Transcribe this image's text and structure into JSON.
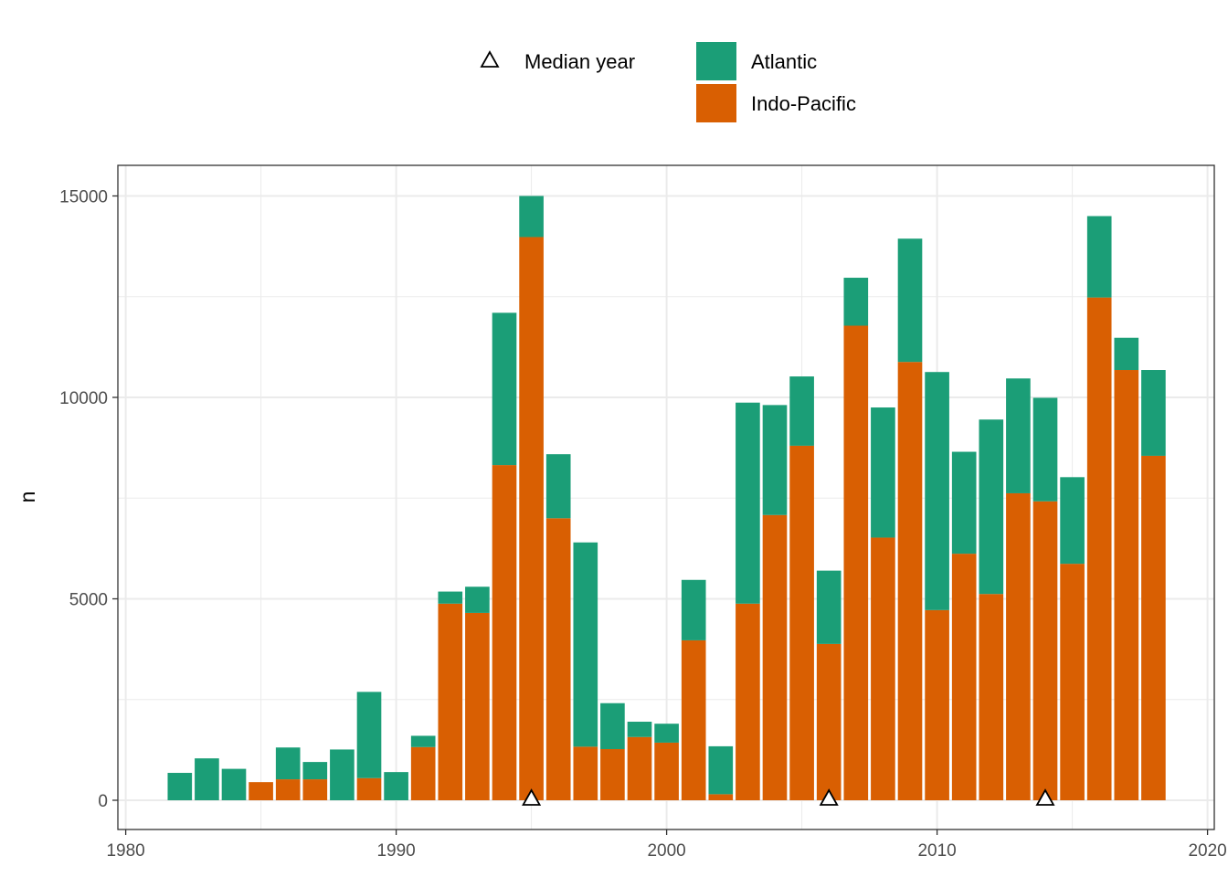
{
  "chart_data": {
    "type": "bar",
    "stacked": true,
    "xlabel": "",
    "ylabel": "n",
    "xlim": [
      1980,
      2020
    ],
    "ylim": [
      0,
      15000
    ],
    "x_ticks": [
      1980,
      1990,
      2000,
      2010,
      2020
    ],
    "y_ticks": [
      0,
      5000,
      10000,
      15000
    ],
    "grid": true,
    "legend_position": "top",
    "legend": {
      "median_label": "Median year",
      "series_labels": [
        "Atlantic",
        "Indo-Pacific"
      ]
    },
    "colors": {
      "Atlantic": "#1b9e77",
      "Indo-Pacific": "#d95f02"
    },
    "x": [
      1982,
      1983,
      1984,
      1985,
      1986,
      1987,
      1988,
      1989,
      1990,
      1991,
      1992,
      1993,
      1994,
      1995,
      1996,
      1997,
      1998,
      1999,
      2000,
      2001,
      2002,
      2003,
      2004,
      2005,
      2006,
      2007,
      2008,
      2009,
      2010,
      2011,
      2012,
      2013,
      2014,
      2015,
      2016,
      2017,
      2018
    ],
    "series": [
      {
        "name": "Indo-Pacific",
        "values": [
          0,
          0,
          0,
          450,
          520,
          520,
          0,
          550,
          0,
          1320,
          4880,
          4650,
          8320,
          13980,
          7000,
          1330,
          1270,
          1570,
          1430,
          3970,
          150,
          4880,
          7080,
          8800,
          3880,
          11780,
          6520,
          10880,
          4720,
          6120,
          5120,
          7620,
          7420,
          5870,
          12480,
          10680,
          8550
        ]
      },
      {
        "name": "Atlantic",
        "values": [
          680,
          1040,
          780,
          0,
          790,
          430,
          1260,
          2140,
          700,
          280,
          300,
          650,
          3780,
          1020,
          1590,
          5070,
          1140,
          380,
          470,
          1500,
          1190,
          4990,
          2730,
          1720,
          1820,
          1190,
          3230,
          3060,
          5910,
          2530,
          4330,
          2850,
          2570,
          2150,
          2020,
          800,
          2130
        ]
      }
    ],
    "median_years": [
      1995,
      2006,
      2014
    ]
  }
}
